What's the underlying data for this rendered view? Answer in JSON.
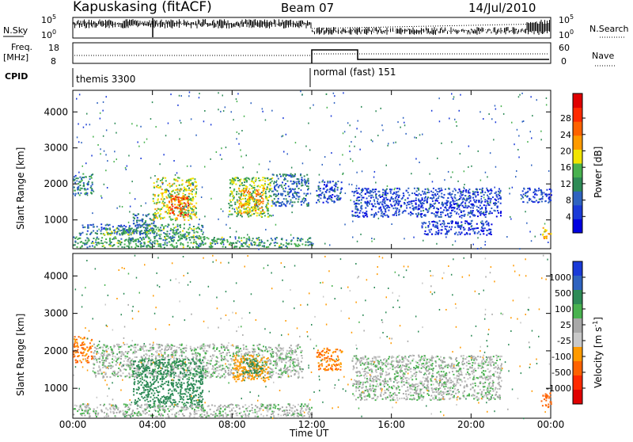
{
  "header": {
    "station": "Kapuskasing (fitACF)",
    "beam": "Beam 07",
    "date": "14/Jul/2010"
  },
  "top_panels": {
    "nsky_label": "N.Sky",
    "nsky_ticks": [
      "10^5",
      "10^0"
    ],
    "nsearch_label": "N.Search",
    "nsearch_ticks": [
      "10^5",
      "10^0"
    ],
    "freq_label_line1": "Freq.",
    "freq_label_line2": "[MHz]",
    "freq_ticks": [
      "18",
      "8"
    ],
    "nave_label": "Nave",
    "nave_ticks": [
      "60",
      "0"
    ],
    "cpid_label": "CPID",
    "cpid_segments": [
      {
        "start_hour": 0,
        "end_hour": 12,
        "text": "themis 3300"
      },
      {
        "start_hour": 12,
        "end_hour": 24,
        "text": "normal (fast) 151"
      }
    ]
  },
  "chart_data": [
    {
      "type": "heatmap",
      "name": "power",
      "xlabel": "",
      "ylabel": "Slant Range [km]",
      "xlim": [
        0,
        24
      ],
      "ylim": [
        200,
        4600
      ],
      "yticks": [
        1000,
        2000,
        3000,
        4000
      ],
      "colorbar": {
        "label": "Power [dB]",
        "ticks": [
          "4",
          "8",
          "12",
          "16",
          "20",
          "24",
          "28"
        ],
        "colors": [
          "#0000e0",
          "#1a3ad8",
          "#2f63c0",
          "#2e8b57",
          "#49b24f",
          "#f2e400",
          "#ff9a00",
          "#ff6200",
          "#ff2a00",
          "#e00000"
        ]
      },
      "regions": [
        {
          "t0": 0.0,
          "t1": 1.0,
          "r0": 1700,
          "r1": 2300,
          "power": 10
        },
        {
          "t0": 0.3,
          "t1": 3.8,
          "r0": 600,
          "r1": 900,
          "power": 8
        },
        {
          "t0": 1.5,
          "t1": 3.0,
          "r0": 600,
          "r1": 800,
          "power": 14
        },
        {
          "t0": 3.0,
          "t1": 4.2,
          "r0": 700,
          "r1": 1200,
          "power": 10
        },
        {
          "t0": 4.0,
          "t1": 6.2,
          "r0": 1000,
          "r1": 2200,
          "power": 16
        },
        {
          "t0": 4.8,
          "t1": 5.8,
          "r0": 1100,
          "r1": 1700,
          "power": 24
        },
        {
          "t0": 3.5,
          "t1": 6.5,
          "r0": 500,
          "r1": 900,
          "power": 12
        },
        {
          "t0": 7.8,
          "t1": 10.0,
          "r0": 1100,
          "r1": 2200,
          "power": 14
        },
        {
          "t0": 8.3,
          "t1": 9.6,
          "r0": 1200,
          "r1": 1900,
          "power": 20
        },
        {
          "t0": 10.0,
          "t1": 11.8,
          "r0": 1400,
          "r1": 2300,
          "power": 8
        },
        {
          "t0": 0.0,
          "t1": 12.0,
          "r0": 250,
          "r1": 550,
          "power": 12
        },
        {
          "t0": 12.2,
          "t1": 13.5,
          "r0": 1500,
          "r1": 2100,
          "power": 6
        },
        {
          "t0": 14.0,
          "t1": 21.5,
          "r0": 1100,
          "r1": 1900,
          "power": 6
        },
        {
          "t0": 17.5,
          "t1": 21.0,
          "r0": 600,
          "r1": 1000,
          "power": 5
        },
        {
          "t0": 22.5,
          "t1": 24.0,
          "r0": 1500,
          "r1": 1900,
          "power": 6
        },
        {
          "t0": 23.5,
          "t1": 24.0,
          "r0": 500,
          "r1": 800,
          "power": 18
        }
      ]
    },
    {
      "type": "heatmap",
      "name": "velocity",
      "xlabel": "Time UT",
      "ylabel": "Slant Range [km]",
      "xlim": [
        0,
        24
      ],
      "ylim": [
        200,
        4600
      ],
      "yticks": [
        1000,
        2000,
        3000,
        4000
      ],
      "xticks": [
        "00:00",
        "04:00",
        "08:00",
        "12:00",
        "16:00",
        "20:00",
        "00:00"
      ],
      "colorbar": {
        "label": "Velocity [m s^-1]",
        "ticks": [
          "1000",
          "500",
          "100",
          "25",
          "-25",
          "-100",
          "-500",
          "-1000"
        ],
        "colors": [
          "#1a3ad8",
          "#2f63c0",
          "#2e8b57",
          "#49b24f",
          "#a8a8a8",
          "#c8c8c8",
          "#ff9a00",
          "#ff6200",
          "#ff2a00",
          "#e00000"
        ]
      },
      "regions": [
        {
          "t0": 0.0,
          "t1": 1.0,
          "r0": 1700,
          "r1": 2400,
          "velocity": -300
        },
        {
          "t0": 1.0,
          "t1": 11.5,
          "r0": 1300,
          "r1": 2200,
          "velocity": 0
        },
        {
          "t0": 3.0,
          "t1": 6.5,
          "r0": 500,
          "r1": 1800,
          "velocity": 150
        },
        {
          "t0": 8.0,
          "t1": 9.8,
          "r0": 1200,
          "r1": 1900,
          "velocity": -200
        },
        {
          "t0": 8.5,
          "t1": 9.5,
          "r0": 1400,
          "r1": 1800,
          "velocity": 200
        },
        {
          "t0": 0.0,
          "t1": 12.0,
          "r0": 250,
          "r1": 600,
          "velocity": 0
        },
        {
          "t0": 12.2,
          "t1": 13.5,
          "r0": 1500,
          "r1": 2100,
          "velocity": -300
        },
        {
          "t0": 14.0,
          "t1": 21.5,
          "r0": 700,
          "r1": 1900,
          "velocity": 0
        },
        {
          "t0": 23.5,
          "t1": 24.0,
          "r0": 500,
          "r1": 900,
          "velocity": -400
        }
      ]
    }
  ]
}
